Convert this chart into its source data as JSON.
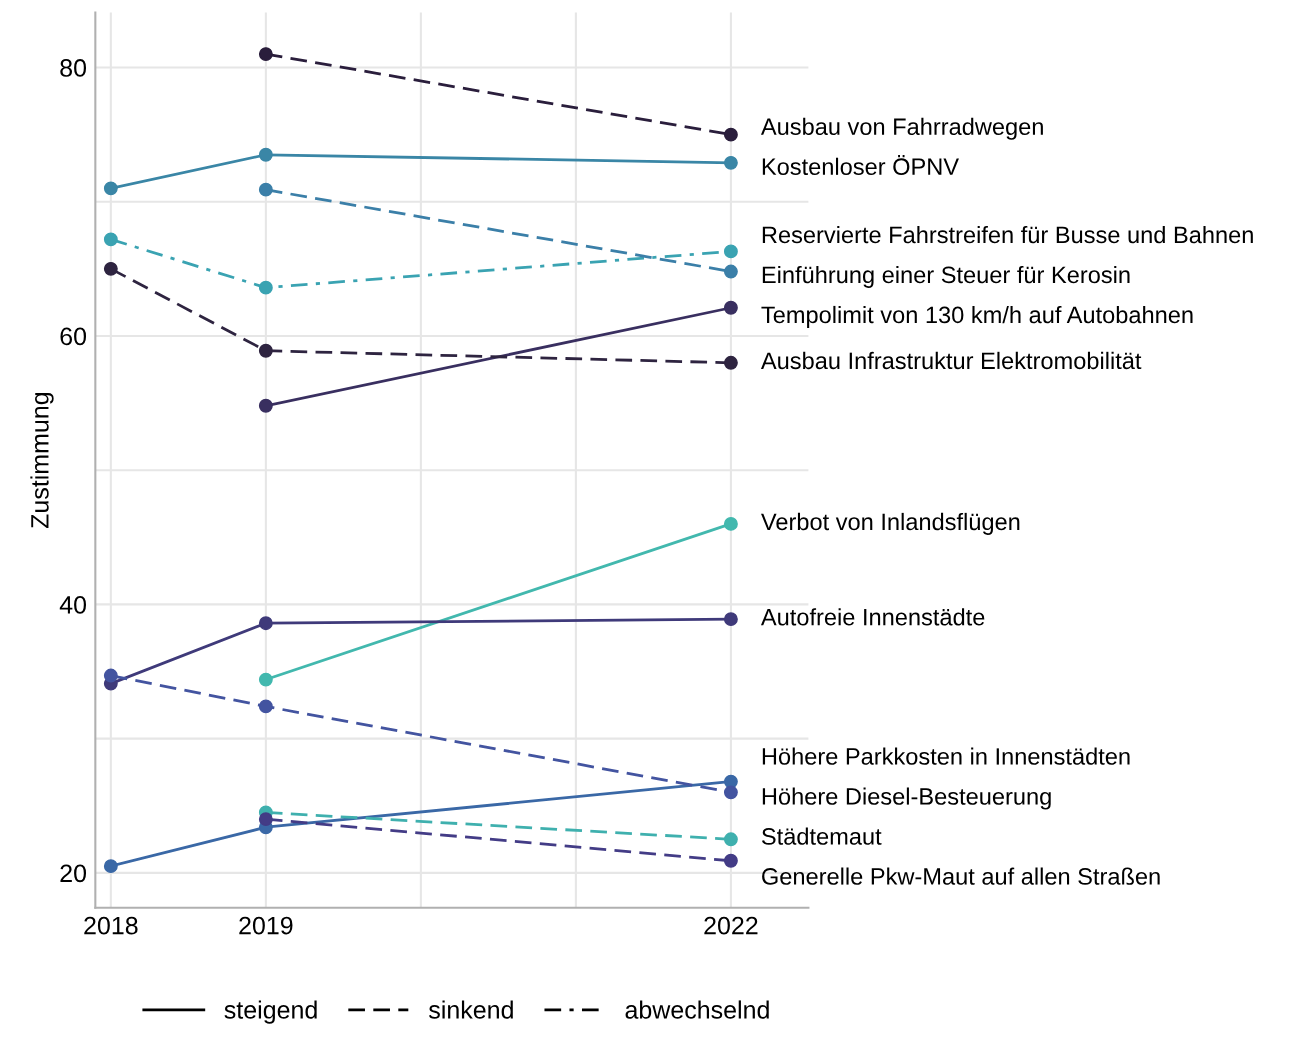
{
  "chart_data": {
    "type": "line",
    "ylabel": "Zustimmung",
    "xlim": [
      2017.9,
      2022.5
    ],
    "ylim": [
      17.4,
      84.1
    ],
    "xticks": [
      2018,
      2019,
      {
        "value": 2020,
        "label": null
      },
      {
        "value": 2021,
        "label": null
      },
      2022
    ],
    "yticks": [
      20,
      {
        "value": 30,
        "label": null
      },
      40,
      {
        "value": 50,
        "label": null
      },
      60,
      {
        "value": 70,
        "label": null
      },
      80
    ],
    "grid": true,
    "marker": "circle",
    "legend": "bottom",
    "annotations": [
      "steigend",
      "sinkend",
      "abwechselnd"
    ],
    "series": [
      {
        "name": "Ausbau von Fahrradwegen",
        "color": "#2a1e3c",
        "line_style": "dashed",
        "x": [
          2019,
          2022
        ],
        "values": [
          81.0,
          75.0
        ]
      },
      {
        "name": "Kostenloser ÖPNV",
        "color": "#3a86a6",
        "line_style": "solid",
        "x": [
          2018,
          2019,
          2022
        ],
        "values": [
          71.0,
          73.5,
          72.9
        ]
      },
      {
        "name": "Reservierte Fahrstreifen für Busse und Bahnen",
        "color": "#3aa3b2",
        "line_style": "dashdot",
        "x": [
          2018,
          2019,
          2022
        ],
        "values": [
          67.2,
          63.6,
          66.3
        ]
      },
      {
        "name": "Einführung einer Steuer für Kerosin",
        "color": "#3b7fa8",
        "line_style": "dashed",
        "x": [
          2019,
          2022
        ],
        "values": [
          70.9,
          64.8
        ]
      },
      {
        "name": "Tempolimit von 130 km/h auf Autobahnen",
        "color": "#392f60",
        "line_style": "solid",
        "x": [
          2019,
          2022
        ],
        "values": [
          54.8,
          62.1
        ]
      },
      {
        "name": "Ausbau Infrastruktur Elektromobilität",
        "color": "#2e2440",
        "line_style": "dashed",
        "x": [
          2018,
          2019,
          2022
        ],
        "values": [
          65.0,
          58.9,
          58.0
        ]
      },
      {
        "name": "Verbot von Inlandsflügen",
        "color": "#42b8ae",
        "line_style": "solid",
        "x": [
          2019,
          2022
        ],
        "values": [
          34.4,
          46.0
        ]
      },
      {
        "name": "Autofreie Innenstädte",
        "color": "#3f3a7a",
        "line_style": "solid",
        "x": [
          2018,
          2019,
          2022
        ],
        "values": [
          34.1,
          38.6,
          38.9
        ]
      },
      {
        "name": "Höhere Parkkosten in Innenstädten",
        "color": "#3a68a6",
        "line_style": "solid",
        "x": [
          2018,
          2019,
          2022
        ],
        "values": [
          20.5,
          23.4,
          26.8
        ]
      },
      {
        "name": "Höhere Diesel-Besteuerung",
        "color": "#4354a0",
        "line_style": "dashed",
        "x": [
          2018,
          2019,
          2022
        ],
        "values": [
          34.7,
          32.4,
          26.0
        ]
      },
      {
        "name": "Städtemaut",
        "color": "#3fb0ae",
        "line_style": "dashed",
        "x": [
          2019,
          2022
        ],
        "values": [
          24.5,
          22.5
        ]
      },
      {
        "name": "Generelle Pkw-Maut auf allen Straßen",
        "color": "#433c86",
        "line_style": "dashed",
        "x": [
          2019,
          2022
        ],
        "values": [
          24.0,
          20.9
        ]
      }
    ]
  }
}
